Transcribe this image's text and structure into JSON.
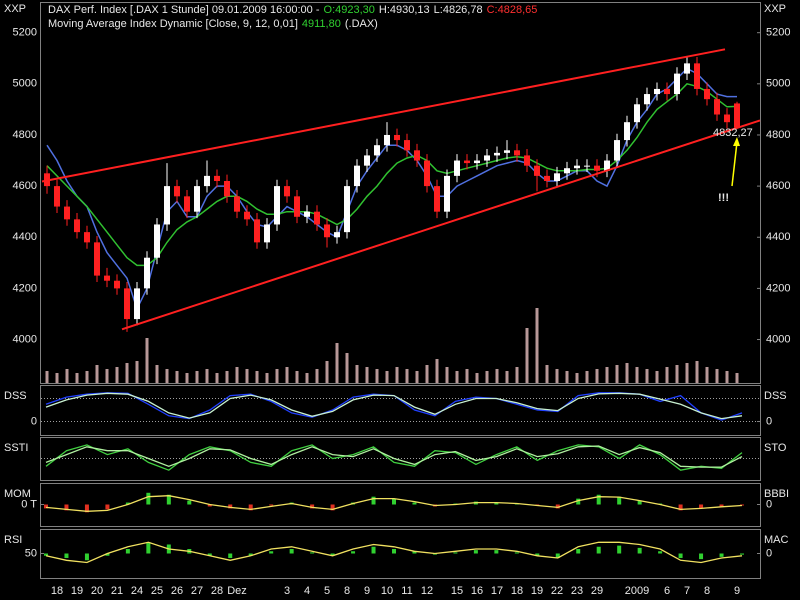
{
  "chart_data": [
    {
      "type": "candlestick",
      "title": "DAX Perf. Index [.DAX 1 Stunde] 09.01.2009 16:00:00 -",
      "value_labels": {
        "open": "O:4923,30",
        "high": "H:4930,13",
        "low": "L:4826,78",
        "close": "C:4828,65"
      },
      "ylabel": "XXP",
      "legend_suffix": "(.DAX)",
      "ylim": [
        3830,
        5320
      ],
      "yticks": [
        4000,
        4200,
        4400,
        4600,
        4800,
        5000,
        5200
      ],
      "xlim": [
        -0.5,
        71.3
      ],
      "up_color": "#ffffff",
      "down_color": "#ff2020",
      "categories": [
        null,
        "18",
        null,
        "19",
        null,
        "20",
        null,
        "21",
        null,
        "24",
        null,
        "25",
        null,
        "26",
        null,
        "27",
        null,
        "28",
        null,
        "Dez",
        null,
        null,
        null,
        null,
        "3",
        null,
        "4",
        null,
        "5",
        null,
        "8",
        null,
        "9",
        null,
        "10",
        null,
        "11",
        null,
        "12",
        null,
        null,
        "15",
        null,
        "16",
        null,
        "17",
        null,
        "18",
        null,
        "19",
        null,
        "22",
        null,
        "23",
        null,
        "29",
        null,
        null,
        null,
        "2009",
        null,
        null,
        "6",
        null,
        "7",
        null,
        "8",
        null,
        null,
        "9"
      ],
      "open": [
        4650,
        4600,
        4520,
        4470,
        4420,
        4380,
        4250,
        4230,
        4200,
        4080,
        4200,
        4320,
        4450,
        4600,
        4560,
        4500,
        4600,
        4640,
        4620,
        4560,
        4500,
        4470,
        4380,
        4450,
        4600,
        4560,
        4480,
        4500,
        4450,
        4400,
        4420,
        4600,
        4680,
        4720,
        4760,
        4800,
        4780,
        4740,
        4700,
        4600,
        4500,
        4640,
        4700,
        4690,
        4700,
        4720,
        4730,
        4740,
        4720,
        4680,
        4640,
        4620,
        4650,
        4670,
        4680,
        4680,
        4660,
        4700,
        4780,
        4850,
        4920,
        4960,
        4980,
        4960,
        5040,
        5080,
        4980,
        4940,
        4880,
        4923.3
      ],
      "high": [
        4680,
        4625,
        4545,
        4495,
        4445,
        4405,
        4280,
        4255,
        4225,
        4225,
        4345,
        4475,
        4690,
        4625,
        4585,
        4625,
        4700,
        4665,
        4645,
        4585,
        4525,
        4495,
        4475,
        4625,
        4625,
        4585,
        4525,
        4525,
        4475,
        4445,
        4625,
        4705,
        4745,
        4785,
        4850,
        4825,
        4805,
        4765,
        4725,
        4625,
        4665,
        4725,
        4725,
        4725,
        4745,
        4755,
        4780,
        4765,
        4745,
        4705,
        4665,
        4675,
        4695,
        4705,
        4705,
        4705,
        4725,
        4805,
        4875,
        4945,
        4985,
        5005,
        5005,
        5065,
        5105,
        5105,
        5005,
        4965,
        4905,
        4930.13
      ],
      "low": [
        4570,
        4495,
        4445,
        4395,
        4355,
        4225,
        4205,
        4175,
        4030,
        4055,
        4175,
        4295,
        4425,
        4535,
        4475,
        4475,
        4575,
        4595,
        4535,
        4475,
        4445,
        4355,
        4355,
        4425,
        4535,
        4455,
        4455,
        4425,
        4360,
        4375,
        4395,
        4575,
        4655,
        4695,
        4735,
        4755,
        4715,
        4675,
        4575,
        4475,
        4475,
        4615,
        4665,
        4665,
        4675,
        4695,
        4705,
        4695,
        4655,
        4580,
        4595,
        4595,
        4625,
        4645,
        4655,
        4635,
        4635,
        4675,
        4755,
        4825,
        4895,
        4935,
        4935,
        4935,
        5015,
        4955,
        4915,
        4855,
        4825,
        4826.78
      ],
      "close": [
        4600,
        4520,
        4470,
        4420,
        4380,
        4250,
        4230,
        4200,
        4080,
        4200,
        4320,
        4450,
        4600,
        4560,
        4500,
        4600,
        4640,
        4620,
        4560,
        4500,
        4470,
        4380,
        4450,
        4600,
        4560,
        4480,
        4500,
        4450,
        4400,
        4420,
        4600,
        4680,
        4720,
        4760,
        4800,
        4780,
        4740,
        4700,
        4600,
        4500,
        4640,
        4700,
        4690,
        4700,
        4720,
        4730,
        4740,
        4720,
        4680,
        4640,
        4620,
        4650,
        4670,
        4680,
        4680,
        4660,
        4700,
        4780,
        4850,
        4920,
        4960,
        4980,
        4960,
        5040,
        5080,
        4980,
        4940,
        4880,
        4850,
        4828.65
      ],
      "series": [
        {
          "color": "#5070e0",
          "values": [
            4760,
            4700,
            4620,
            4560,
            4520,
            4420,
            4340,
            4290,
            4240,
            4120,
            4200,
            4350,
            4500,
            4540,
            4480,
            4480,
            4560,
            4600,
            4600,
            4560,
            4500,
            4450,
            4440,
            4480,
            4520,
            4500,
            4480,
            4450,
            4420,
            4400,
            4500,
            4600,
            4660,
            4710,
            4760,
            4760,
            4740,
            4700,
            4640,
            4560,
            4560,
            4600,
            4620,
            4640,
            4660,
            4680,
            4690,
            4700,
            4690,
            4650,
            4620,
            4620,
            4640,
            4660,
            4660,
            4620,
            4600,
            4680,
            4780,
            4850,
            4900,
            4960,
            4980,
            5020,
            5060,
            5040,
            5000,
            4960,
            4950,
            4950
          ]
        },
        {
          "name": "Moving Average Index Dynamic [Close, 9, 12, 0,01]",
          "color": "#30c030",
          "last_label": "4911,80",
          "values": [
            4680,
            4640,
            4600,
            4560,
            4520,
            4470,
            4420,
            4370,
            4320,
            4290,
            4290,
            4320,
            4380,
            4430,
            4460,
            4480,
            4510,
            4540,
            4560,
            4560,
            4540,
            4510,
            4490,
            4490,
            4500,
            4500,
            4500,
            4490,
            4470,
            4450,
            4470,
            4510,
            4560,
            4600,
            4650,
            4690,
            4710,
            4720,
            4700,
            4660,
            4650,
            4660,
            4670,
            4680,
            4690,
            4700,
            4710,
            4715,
            4710,
            4690,
            4670,
            4660,
            4660,
            4660,
            4665,
            4665,
            4670,
            4700,
            4740,
            4790,
            4850,
            4900,
            4930,
            4960,
            5000,
            4990,
            4970,
            4940,
            4910,
            4911.8
          ]
        }
      ],
      "volume": [
        12,
        10,
        14,
        10,
        12,
        18,
        14,
        16,
        20,
        22,
        45,
        18,
        14,
        12,
        10,
        12,
        14,
        10,
        12,
        16,
        14,
        12,
        10,
        14,
        16,
        12,
        10,
        14,
        22,
        40,
        30,
        18,
        16,
        14,
        12,
        16,
        14,
        12,
        18,
        24,
        16,
        12,
        14,
        10,
        12,
        14,
        12,
        16,
        55,
        75,
        18,
        14,
        12,
        10,
        12,
        14,
        16,
        18,
        20,
        16,
        14,
        12,
        16,
        18,
        20,
        22,
        16,
        14,
        12,
        10
      ],
      "volume_lim": [
        0,
        130
      ],
      "volume_color": "#b89898",
      "trendlines": [
        {
          "color": "#ff2020",
          "x": [
            -0.5,
            67.8
          ],
          "y": [
            4618,
            5135
          ]
        },
        {
          "color": "#ff2020",
          "x": [
            7.5,
            71.3
          ],
          "y": [
            4040,
            4857
          ]
        }
      ],
      "annotations": [
        {
          "text": "4832,27",
          "color": "#ff3030"
        },
        {
          "text": "!!!",
          "color": "#ffff00"
        }
      ]
    },
    {
      "type": "oscillator",
      "title": "DSS",
      "y2_label": "DSS",
      "ylim": [
        -40,
        120
      ],
      "yticks": [
        0
      ],
      "y2lim": [
        -40,
        120
      ],
      "y2ticks": [
        0
      ],
      "grid": true,
      "levels": [
        80
      ],
      "series": [
        {
          "color": "#2040ff",
          "values": [
            60,
            85,
            95,
            100,
            98,
            60,
            20,
            10,
            40,
            90,
            95,
            70,
            30,
            15,
            40,
            85,
            95,
            90,
            40,
            20,
            70,
            85,
            80,
            60,
            40,
            35,
            90,
            100,
            100,
            95,
            70,
            90,
            30,
            5,
            30
          ]
        },
        {
          "color": "#c8f0d0",
          "values": [
            50,
            75,
            92,
            98,
            95,
            70,
            30,
            12,
            30,
            80,
            92,
            75,
            40,
            18,
            35,
            75,
            92,
            90,
            50,
            25,
            60,
            80,
            80,
            65,
            45,
            38,
            80,
            96,
            98,
            95,
            78,
            60,
            30,
            10,
            20
          ]
        }
      ]
    },
    {
      "type": "oscillator",
      "title": "SSTI",
      "y2_label": "STO",
      "ylim": [
        0,
        100
      ],
      "levels": [
        50
      ],
      "series": [
        {
          "color": "#40d040",
          "values": [
            30,
            70,
            85,
            60,
            75,
            40,
            20,
            60,
            80,
            70,
            40,
            30,
            70,
            85,
            50,
            60,
            80,
            40,
            30,
            70,
            65,
            35,
            60,
            80,
            45,
            70,
            85,
            80,
            50,
            85,
            60,
            20,
            30,
            25,
            65
          ]
        },
        {
          "color": "#b0f0a0",
          "values": [
            40,
            60,
            80,
            70,
            70,
            50,
            30,
            50,
            75,
            72,
            50,
            35,
            60,
            80,
            60,
            55,
            75,
            50,
            35,
            60,
            68,
            45,
            55,
            75,
            55,
            62,
            80,
            82,
            60,
            78,
            65,
            30,
            28,
            28,
            55
          ]
        }
      ]
    },
    {
      "type": "oscillator",
      "title": "MOM",
      "y2_label": "BBBI",
      "ylim": [
        -100,
        100
      ],
      "yticks": [
        {
          "value": 0,
          "label": "0 T"
        }
      ],
      "y2lim": [
        -100,
        100
      ],
      "y2ticks": [
        0
      ],
      "series": [
        {
          "kind": "bar",
          "color": "#30d030",
          "negative_color": "#e03020",
          "values": [
            -20,
            -30,
            -40,
            -25,
            10,
            60,
            50,
            20,
            -10,
            -20,
            -30,
            -5,
            10,
            -20,
            -30,
            10,
            40,
            30,
            10,
            -10,
            5,
            15,
            10,
            5,
            -5,
            -20,
            30,
            50,
            40,
            20,
            5,
            -30,
            -20,
            -10,
            -5
          ]
        },
        {
          "color": "#f0e060",
          "axis": "y2",
          "values": [
            -15,
            -25,
            -35,
            -30,
            0,
            40,
            45,
            25,
            0,
            -15,
            -25,
            -10,
            5,
            -15,
            -25,
            5,
            30,
            30,
            15,
            -5,
            0,
            10,
            10,
            5,
            -5,
            -15,
            20,
            40,
            38,
            20,
            0,
            -25,
            -20,
            -12,
            -5
          ]
        }
      ]
    },
    {
      "type": "oscillator",
      "title": "RSI",
      "y2_label": "MAC",
      "ylim": [
        0,
        100
      ],
      "yticks": [
        50
      ],
      "y2lim": [
        -100,
        100
      ],
      "y2ticks": [
        0
      ],
      "series": [
        {
          "kind": "bar",
          "axis": "y2",
          "color": "#30d030",
          "negative_color": "#30d030",
          "values": [
            -10,
            -20,
            -30,
            -10,
            20,
            50,
            40,
            20,
            -10,
            -20,
            -10,
            10,
            20,
            5,
            -10,
            10,
            30,
            20,
            10,
            -5,
            5,
            15,
            15,
            5,
            -10,
            -20,
            20,
            30,
            35,
            25,
            10,
            -20,
            -25,
            -15,
            -5
          ]
        },
        {
          "color": "#f0e060",
          "values": [
            45,
            35,
            30,
            50,
            65,
            75,
            60,
            55,
            45,
            35,
            45,
            60,
            65,
            55,
            45,
            60,
            70,
            65,
            55,
            50,
            55,
            60,
            60,
            55,
            45,
            40,
            65,
            75,
            75,
            70,
            60,
            35,
            30,
            40,
            45
          ]
        }
      ]
    }
  ]
}
